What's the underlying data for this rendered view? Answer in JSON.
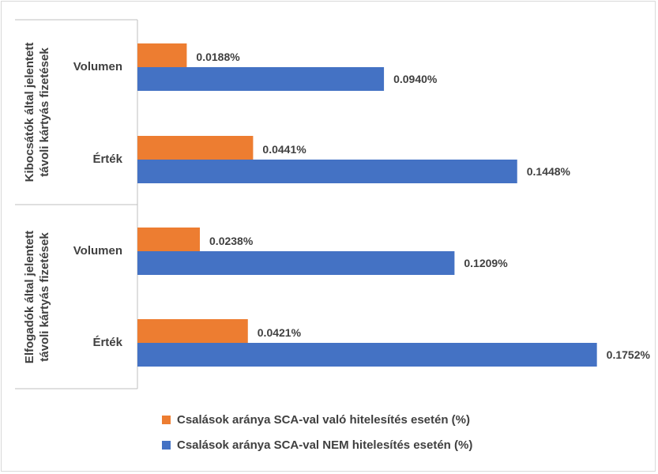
{
  "chart_data": {
    "type": "bar",
    "orientation": "horizontal",
    "groups": [
      {
        "label": "Kibocsátók által jelentett távoli kártyás fizetések",
        "categories": [
          "Volumen",
          "Érték"
        ]
      },
      {
        "label": "Elfogadók által jelentett távoli kártyás fizetések",
        "categories": [
          "Volumen",
          "Érték"
        ]
      }
    ],
    "series": [
      {
        "name": "Csalások aránya SCA-val való hitelesítés esetén (%)",
        "color": "#ed7d31",
        "values": [
          0.0188,
          0.0441,
          0.0238,
          0.0421
        ],
        "labels": [
          "0.0188%",
          "0.0441%",
          "0.0238%",
          "0.0421%"
        ]
      },
      {
        "name": "Csalások aránya SCA-val NEM hitelesítés esetén (%)",
        "color": "#4472c4",
        "values": [
          0.094,
          0.1448,
          0.1209,
          0.1752
        ],
        "labels": [
          "0.0940%",
          "0.1448%",
          "0.1209%",
          "0.1752%"
        ]
      }
    ],
    "xlim": [
      0,
      0.2
    ],
    "grid": false,
    "legend_position": "bottom"
  }
}
